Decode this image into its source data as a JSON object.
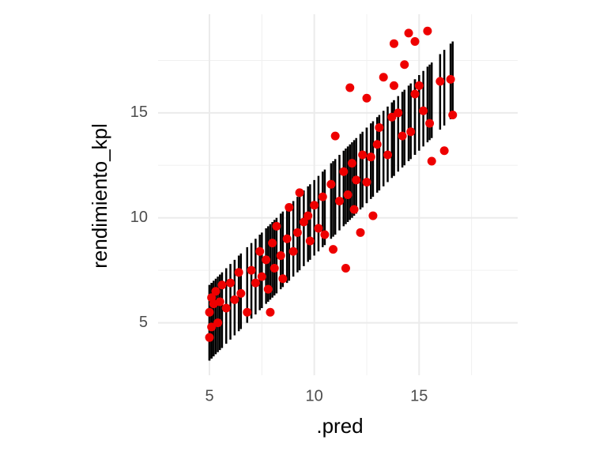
{
  "chart_data": {
    "type": "scatter",
    "x_label": ".pred",
    "y_label": "rendimiento_kpl",
    "x": [
      5.0,
      5.0,
      5.1,
      5.1,
      5.2,
      5.3,
      5.4,
      5.5,
      5.6,
      5.8,
      6.0,
      6.2,
      6.4,
      6.5,
      6.8,
      7.0,
      7.2,
      7.4,
      7.5,
      7.7,
      7.8,
      7.9,
      8.0,
      8.1,
      8.2,
      8.4,
      8.5,
      8.7,
      8.8,
      9.0,
      9.2,
      9.3,
      9.5,
      9.7,
      9.8,
      10.0,
      10.2,
      10.4,
      10.5,
      10.8,
      10.9,
      11.0,
      11.2,
      11.4,
      11.5,
      11.6,
      11.8,
      11.9,
      12.0,
      12.2,
      12.3,
      12.5,
      12.7,
      12.8,
      13.0,
      13.1,
      13.3,
      13.5,
      13.7,
      13.8,
      14.0,
      14.2,
      14.3,
      14.5,
      14.6,
      14.8,
      15.0,
      15.2,
      15.4,
      15.5,
      15.6,
      16.0,
      16.2,
      16.5,
      16.6,
      11.7,
      12.5,
      13.8,
      14.8
    ],
    "y": [
      4.3,
      5.5,
      6.2,
      4.8,
      5.9,
      6.5,
      5.0,
      6.0,
      6.8,
      5.7,
      6.9,
      6.1,
      7.4,
      6.4,
      5.5,
      7.5,
      6.9,
      8.4,
      7.2,
      8.0,
      6.6,
      5.5,
      8.8,
      7.6,
      9.6,
      8.2,
      7.1,
      9.0,
      10.5,
      8.4,
      9.3,
      11.2,
      9.8,
      10.1,
      8.9,
      10.6,
      9.5,
      11.0,
      9.2,
      11.6,
      8.5,
      13.9,
      10.8,
      12.2,
      7.6,
      11.1,
      12.6,
      10.4,
      11.8,
      9.3,
      13.0,
      11.7,
      12.9,
      10.1,
      13.5,
      14.3,
      16.7,
      13.0,
      14.8,
      18.3,
      15.0,
      13.9,
      17.3,
      18.8,
      14.1,
      15.9,
      16.3,
      15.1,
      18.9,
      14.5,
      12.7,
      16.5,
      13.2,
      16.6,
      14.9,
      16.2,
      15.7,
      16.3,
      18.4
    ],
    "error": 1.8,
    "point_color": "#ee0000",
    "interval_color": "#000000",
    "xlim": [
      2.55,
      19.7
    ],
    "ylim": [
      2.5,
      19.7
    ],
    "xticks": [
      5,
      10,
      15
    ],
    "yticks": [
      5,
      10,
      15
    ],
    "minor_xticks": [
      7.5,
      12.5,
      17.5
    ],
    "minor_yticks": [
      7.5,
      12.5,
      17.5
    ],
    "grid": true
  }
}
